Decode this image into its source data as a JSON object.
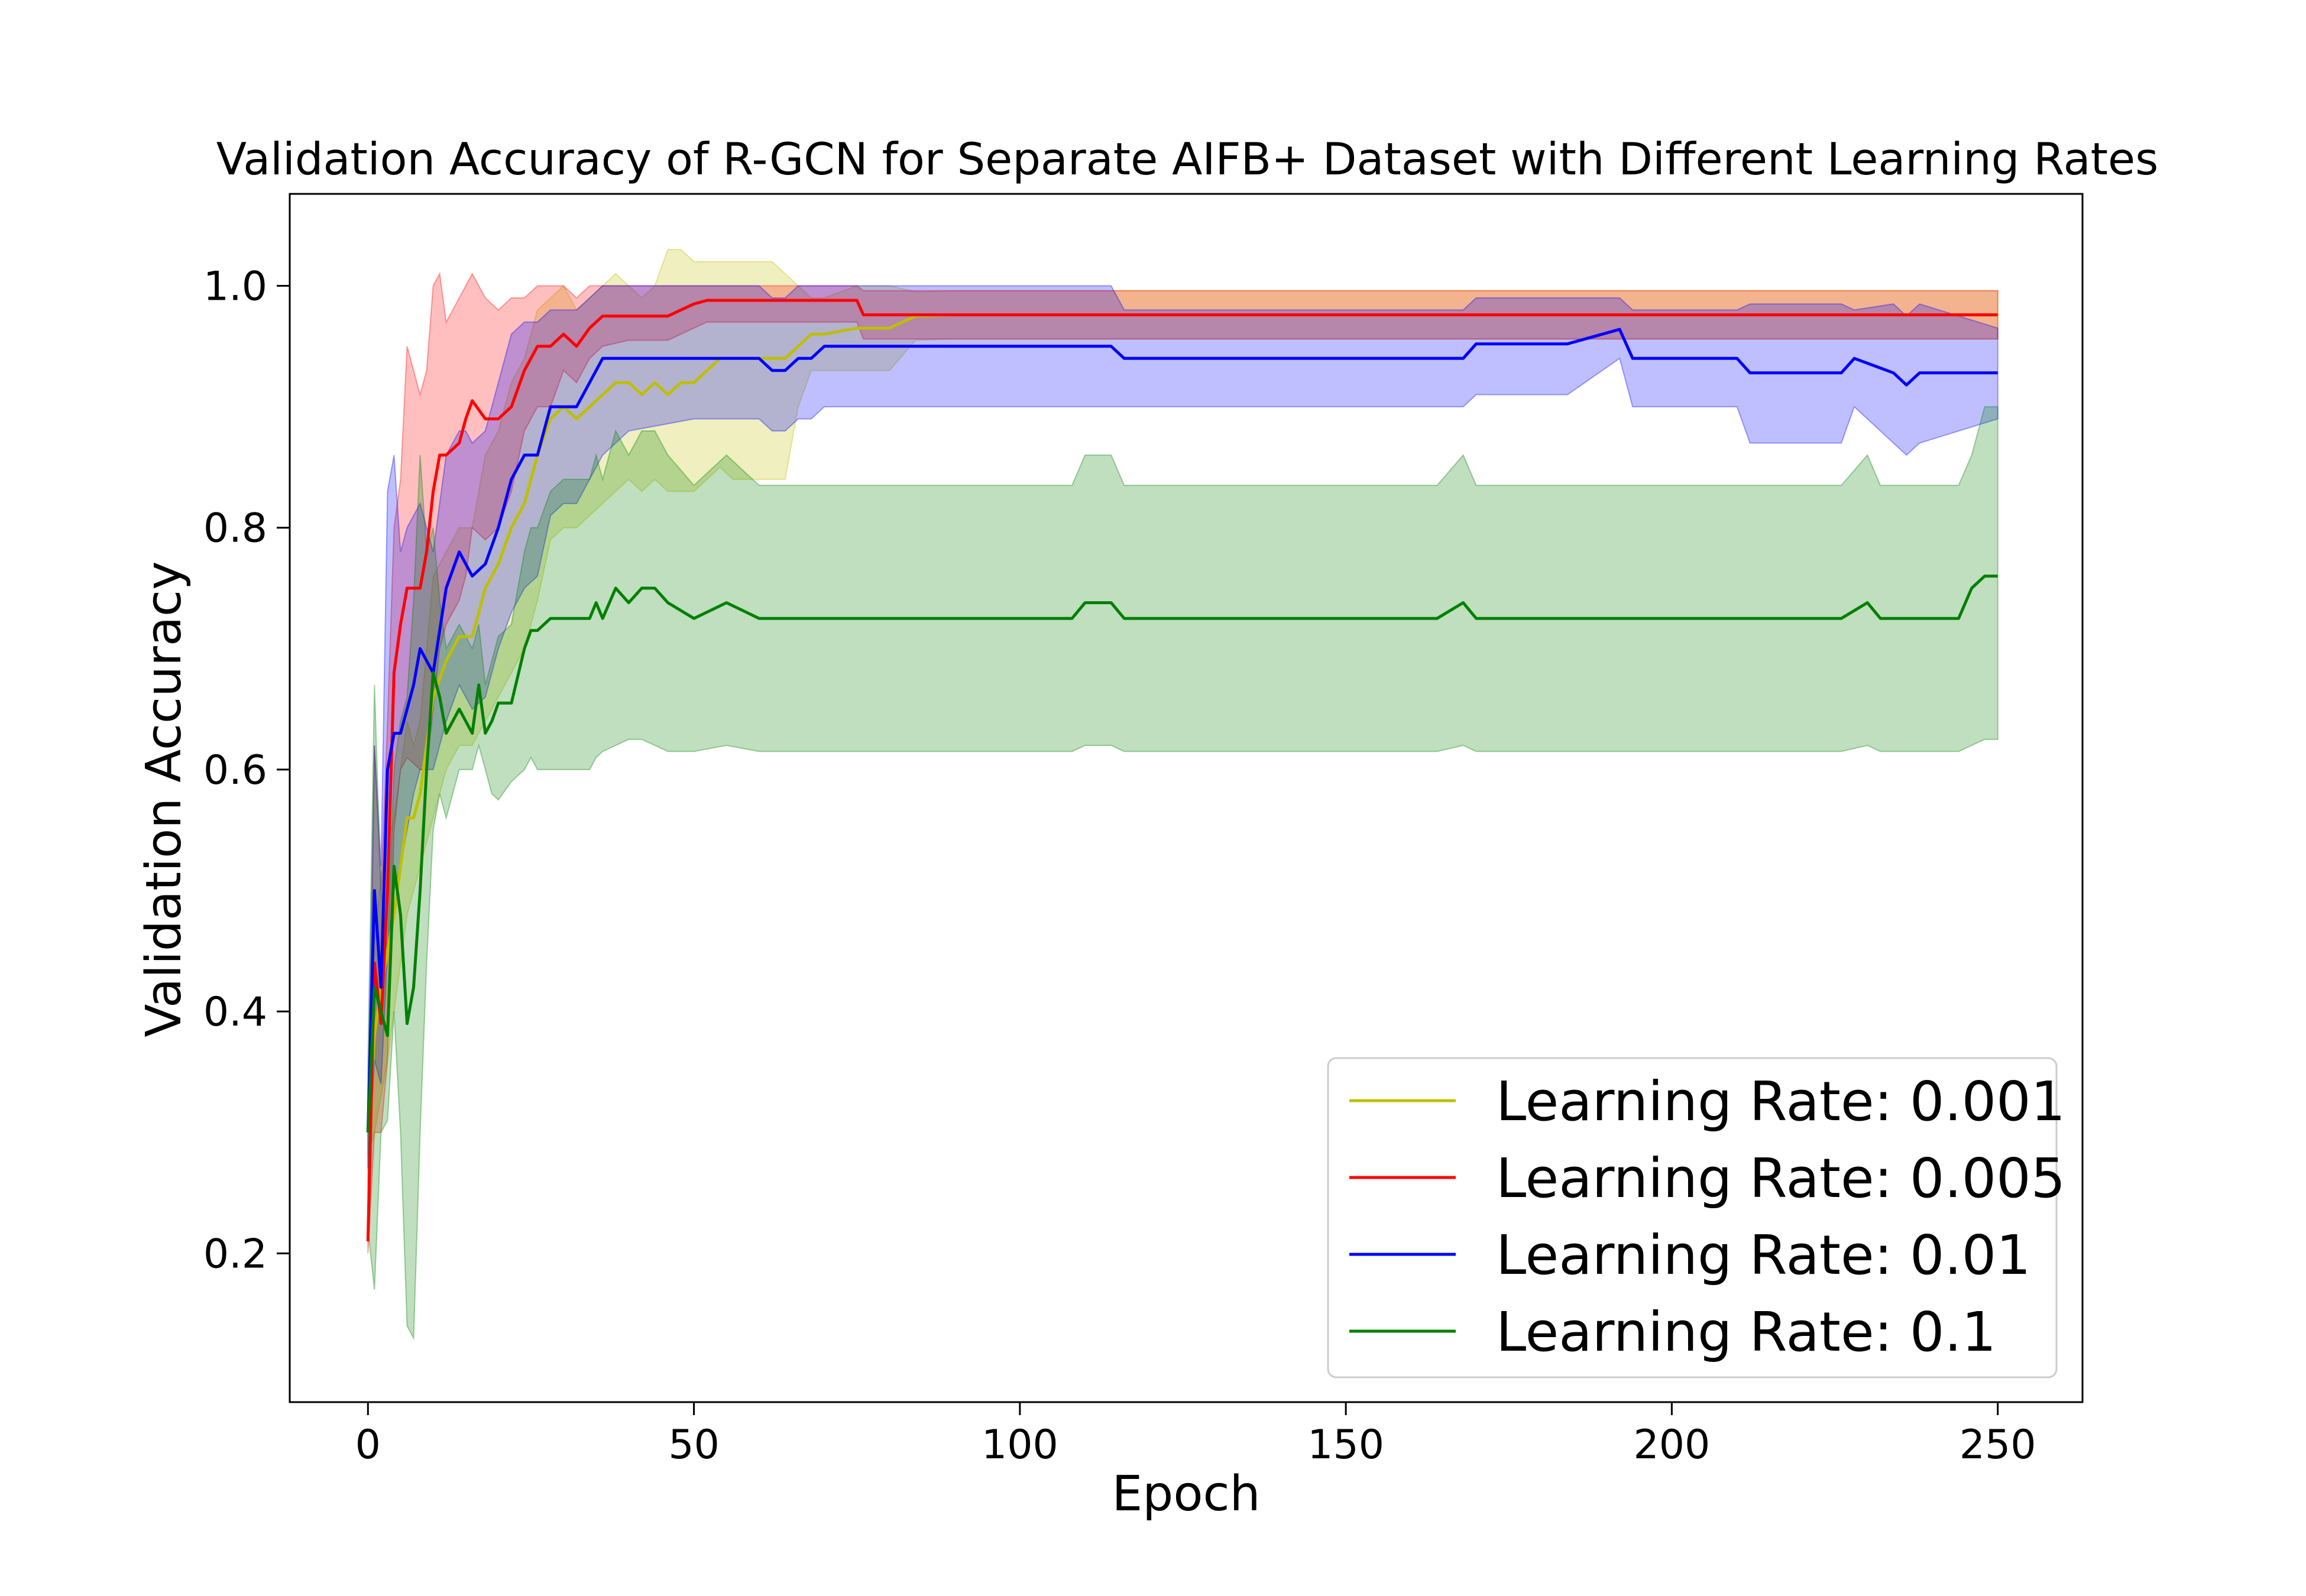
{
  "chart_data": {
    "type": "line",
    "title": "Validation Accuracy of R-GCN for Separate AIFB+ Dataset with Different Learning Rates",
    "xlabel": "Epoch",
    "ylabel": "Validation Accuracy",
    "xlim": [
      -12,
      263
    ],
    "ylim": [
      0.077,
      1.076
    ],
    "xticks": [
      0,
      50,
      100,
      150,
      200,
      250
    ],
    "yticks": [
      0.2,
      0.4,
      0.6,
      0.8,
      1.0
    ],
    "grid": false,
    "legend_position": "lower-right",
    "series": [
      {
        "name": "Learning Rate: 0.001",
        "color": "#bfbf00",
        "x": [
          0,
          1,
          2,
          3,
          4,
          5,
          6,
          7,
          8,
          10,
          12,
          14,
          16,
          18,
          20,
          22,
          24,
          26,
          28,
          30,
          32,
          34,
          36,
          38,
          40,
          42,
          44,
          46,
          48,
          50,
          52,
          54,
          56,
          58,
          60,
          62,
          64,
          66,
          68,
          70,
          75,
          80,
          84,
          90,
          100,
          120,
          150,
          200,
          250
        ],
        "y": [
          0.3,
          0.38,
          0.42,
          0.45,
          0.48,
          0.52,
          0.56,
          0.56,
          0.58,
          0.66,
          0.69,
          0.71,
          0.71,
          0.75,
          0.77,
          0.8,
          0.82,
          0.86,
          0.89,
          0.9,
          0.89,
          0.9,
          0.91,
          0.92,
          0.92,
          0.91,
          0.92,
          0.91,
          0.92,
          0.92,
          0.93,
          0.94,
          0.94,
          0.94,
          0.94,
          0.94,
          0.94,
          0.95,
          0.96,
          0.96,
          0.965,
          0.965,
          0.975,
          0.976,
          0.976,
          0.976,
          0.976,
          0.976,
          0.976
        ],
        "lower": [
          0.28,
          0.3,
          0.33,
          0.36,
          0.4,
          0.44,
          0.48,
          0.5,
          0.52,
          0.56,
          0.6,
          0.62,
          0.62,
          0.64,
          0.66,
          0.68,
          0.7,
          0.74,
          0.79,
          0.8,
          0.8,
          0.81,
          0.82,
          0.83,
          0.84,
          0.83,
          0.84,
          0.83,
          0.83,
          0.83,
          0.84,
          0.85,
          0.84,
          0.84,
          0.84,
          0.84,
          0.84,
          0.9,
          0.93,
          0.93,
          0.93,
          0.93,
          0.955,
          0.956,
          0.956,
          0.956,
          0.956,
          0.956,
          0.956
        ],
        "upper": [
          0.32,
          0.46,
          0.51,
          0.54,
          0.56,
          0.6,
          0.64,
          0.62,
          0.64,
          0.76,
          0.78,
          0.8,
          0.8,
          0.86,
          0.88,
          0.92,
          0.94,
          0.98,
          0.99,
          1.0,
          0.98,
          0.99,
          1.0,
          1.01,
          1.0,
          0.99,
          1.0,
          1.03,
          1.03,
          1.02,
          1.02,
          1.02,
          1.02,
          1.02,
          1.02,
          1.02,
          1.01,
          1.0,
          0.99,
          0.99,
          1.0,
          1.0,
          0.995,
          0.996,
          0.996,
          0.996,
          0.996,
          0.996,
          0.996
        ]
      },
      {
        "name": "Learning Rate: 0.005",
        "color": "#ff0000",
        "x": [
          0,
          1,
          2,
          3,
          4,
          5,
          6,
          8,
          9,
          10,
          11,
          12,
          14,
          15,
          16,
          18,
          20,
          22,
          24,
          26,
          28,
          30,
          32,
          34,
          36,
          40,
          46,
          50,
          52,
          60,
          70,
          75,
          76,
          100,
          150,
          200,
          250
        ],
        "y": [
          0.21,
          0.44,
          0.39,
          0.5,
          0.68,
          0.72,
          0.75,
          0.75,
          0.78,
          0.83,
          0.86,
          0.86,
          0.87,
          0.89,
          0.905,
          0.89,
          0.89,
          0.9,
          0.93,
          0.95,
          0.95,
          0.96,
          0.95,
          0.965,
          0.975,
          0.975,
          0.975,
          0.985,
          0.988,
          0.988,
          0.988,
          0.988,
          0.976,
          0.976,
          0.976,
          0.976,
          0.976
        ],
        "lower": [
          0.2,
          0.3,
          0.3,
          0.36,
          0.55,
          0.6,
          0.61,
          0.6,
          0.6,
          0.65,
          0.7,
          0.72,
          0.74,
          0.76,
          0.8,
          0.79,
          0.8,
          0.83,
          0.88,
          0.9,
          0.9,
          0.93,
          0.92,
          0.94,
          0.95,
          0.955,
          0.955,
          0.965,
          0.97,
          0.97,
          0.97,
          0.97,
          0.956,
          0.956,
          0.956,
          0.956,
          0.956
        ],
        "upper": [
          0.24,
          0.62,
          0.5,
          0.64,
          0.8,
          0.84,
          0.95,
          0.91,
          0.93,
          1.0,
          1.01,
          0.97,
          0.99,
          1.0,
          1.01,
          0.99,
          0.98,
          0.99,
          0.99,
          1.0,
          1.0,
          1.0,
          0.99,
          1.0,
          1.0,
          1.0,
          1.0,
          1.0,
          1.0,
          1.0,
          1.0,
          1.0,
          0.996,
          0.996,
          0.996,
          0.996,
          0.996
        ]
      },
      {
        "name": "Learning Rate: 0.01",
        "color": "#0000ff",
        "x": [
          0,
          1,
          2,
          3,
          4,
          5,
          6,
          7,
          8,
          9,
          10,
          12,
          14,
          15,
          16,
          18,
          20,
          22,
          24,
          26,
          28,
          30,
          32,
          34,
          36,
          40,
          50,
          60,
          62,
          64,
          66,
          68,
          70,
          80,
          100,
          114,
          116,
          150,
          168,
          170,
          184,
          192,
          194,
          210,
          212,
          226,
          228,
          234,
          236,
          238,
          250
        ],
        "y": [
          0.3,
          0.5,
          0.42,
          0.6,
          0.63,
          0.63,
          0.65,
          0.67,
          0.7,
          0.69,
          0.68,
          0.75,
          0.78,
          0.77,
          0.76,
          0.77,
          0.8,
          0.84,
          0.86,
          0.86,
          0.9,
          0.9,
          0.9,
          0.92,
          0.94,
          0.94,
          0.94,
          0.94,
          0.93,
          0.93,
          0.94,
          0.94,
          0.95,
          0.95,
          0.95,
          0.95,
          0.94,
          0.94,
          0.94,
          0.952,
          0.952,
          0.964,
          0.94,
          0.94,
          0.928,
          0.928,
          0.94,
          0.928,
          0.918,
          0.928,
          0.928
        ],
        "lower": [
          0.27,
          0.36,
          0.34,
          0.45,
          0.5,
          0.52,
          0.55,
          0.58,
          0.6,
          0.6,
          0.6,
          0.64,
          0.67,
          0.66,
          0.65,
          0.66,
          0.7,
          0.73,
          0.75,
          0.76,
          0.81,
          0.82,
          0.82,
          0.84,
          0.86,
          0.88,
          0.89,
          0.89,
          0.88,
          0.88,
          0.89,
          0.89,
          0.9,
          0.9,
          0.9,
          0.9,
          0.9,
          0.9,
          0.9,
          0.91,
          0.91,
          0.94,
          0.9,
          0.9,
          0.87,
          0.87,
          0.9,
          0.87,
          0.86,
          0.87,
          0.89
        ],
        "upper": [
          0.33,
          0.62,
          0.52,
          0.83,
          0.86,
          0.78,
          0.8,
          0.81,
          0.82,
          0.8,
          0.78,
          0.86,
          0.88,
          0.88,
          0.87,
          0.88,
          0.92,
          0.96,
          0.97,
          0.97,
          0.98,
          0.98,
          0.98,
          0.99,
          1.0,
          1.0,
          1.0,
          1.0,
          0.99,
          0.99,
          1.0,
          1.0,
          1.0,
          1.0,
          1.0,
          1.0,
          0.98,
          0.98,
          0.98,
          0.99,
          0.99,
          0.99,
          0.98,
          0.98,
          0.985,
          0.985,
          0.98,
          0.985,
          0.975,
          0.985,
          0.965
        ]
      },
      {
        "name": "Learning Rate: 0.1",
        "color": "#008000",
        "x": [
          0,
          1,
          2,
          3,
          4,
          5,
          6,
          7,
          8,
          9,
          10,
          11,
          12,
          14,
          16,
          17,
          18,
          19,
          20,
          22,
          24,
          25,
          26,
          28,
          30,
          32,
          34,
          35,
          36,
          38,
          40,
          42,
          44,
          46,
          50,
          55,
          60,
          62,
          70,
          108,
          110,
          114,
          116,
          150,
          164,
          168,
          170,
          200,
          226,
          230,
          232,
          244,
          246,
          248,
          250
        ],
        "y": [
          0.3,
          0.42,
          0.4,
          0.38,
          0.52,
          0.48,
          0.39,
          0.42,
          0.5,
          0.6,
          0.68,
          0.66,
          0.63,
          0.65,
          0.63,
          0.67,
          0.63,
          0.64,
          0.655,
          0.655,
          0.7,
          0.715,
          0.715,
          0.725,
          0.725,
          0.725,
          0.725,
          0.738,
          0.725,
          0.75,
          0.738,
          0.75,
          0.75,
          0.738,
          0.725,
          0.738,
          0.725,
          0.725,
          0.725,
          0.725,
          0.738,
          0.738,
          0.725,
          0.725,
          0.725,
          0.738,
          0.725,
          0.725,
          0.725,
          0.738,
          0.725,
          0.725,
          0.75,
          0.76,
          0.76
        ],
        "lower": [
          0.22,
          0.17,
          0.3,
          0.31,
          0.4,
          0.3,
          0.14,
          0.13,
          0.3,
          0.44,
          0.55,
          0.58,
          0.56,
          0.6,
          0.6,
          0.62,
          0.6,
          0.58,
          0.575,
          0.59,
          0.6,
          0.61,
          0.6,
          0.6,
          0.6,
          0.6,
          0.6,
          0.61,
          0.615,
          0.62,
          0.625,
          0.625,
          0.62,
          0.615,
          0.615,
          0.62,
          0.615,
          0.615,
          0.615,
          0.615,
          0.62,
          0.62,
          0.615,
          0.615,
          0.615,
          0.62,
          0.615,
          0.615,
          0.615,
          0.62,
          0.615,
          0.615,
          0.62,
          0.625,
          0.625
        ],
        "upper": [
          0.36,
          0.67,
          0.5,
          0.45,
          0.6,
          0.64,
          0.66,
          0.74,
          0.86,
          0.78,
          0.8,
          0.74,
          0.7,
          0.72,
          0.7,
          0.72,
          0.67,
          0.69,
          0.71,
          0.72,
          0.78,
          0.8,
          0.8,
          0.83,
          0.84,
          0.84,
          0.84,
          0.86,
          0.84,
          0.88,
          0.86,
          0.88,
          0.88,
          0.86,
          0.835,
          0.86,
          0.835,
          0.835,
          0.835,
          0.835,
          0.86,
          0.86,
          0.835,
          0.835,
          0.835,
          0.86,
          0.835,
          0.835,
          0.835,
          0.86,
          0.835,
          0.835,
          0.86,
          0.9,
          0.9
        ]
      }
    ]
  }
}
